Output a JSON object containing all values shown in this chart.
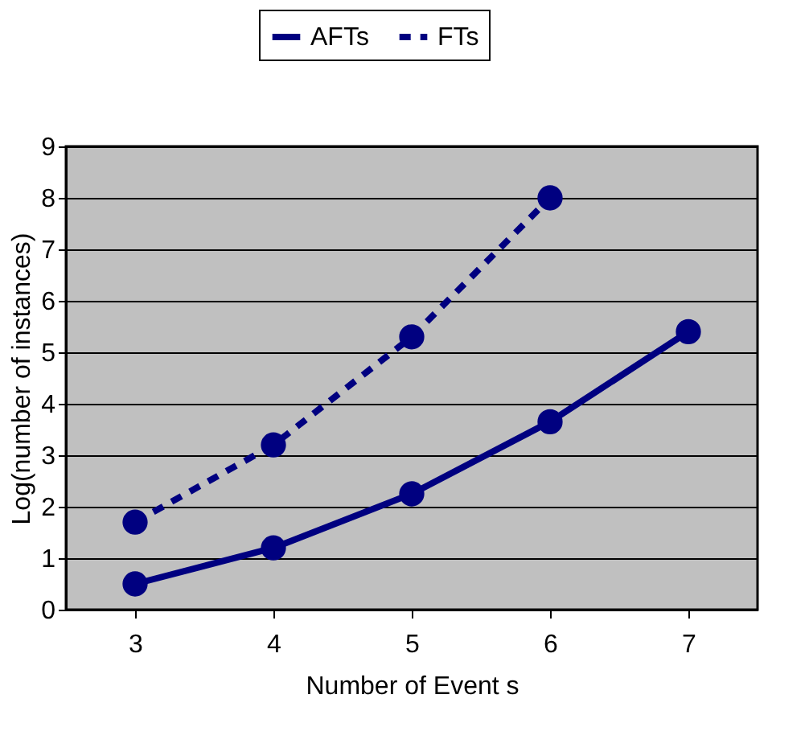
{
  "chart_data": {
    "type": "line",
    "xlabel": "Number of Event s",
    "ylabel": "Log(number of instances)",
    "categories": [
      "3",
      "4",
      "5",
      "6",
      "7"
    ],
    "series": [
      {
        "name": "AFTs",
        "color": "#000080",
        "values": [
          0.5,
          1.2,
          2.25,
          3.65,
          5.4
        ],
        "line_style": "solid"
      },
      {
        "name": "FTs",
        "color": "#000080",
        "values": [
          1.7,
          3.2,
          5.3,
          8.0,
          null
        ],
        "line_style": "dashed"
      }
    ],
    "ylim": [
      0,
      9
    ],
    "yticks": [
      0,
      1,
      2,
      3,
      4,
      5,
      6,
      7,
      8,
      9
    ],
    "grid": "y",
    "legend": "top",
    "marker": "circle"
  }
}
